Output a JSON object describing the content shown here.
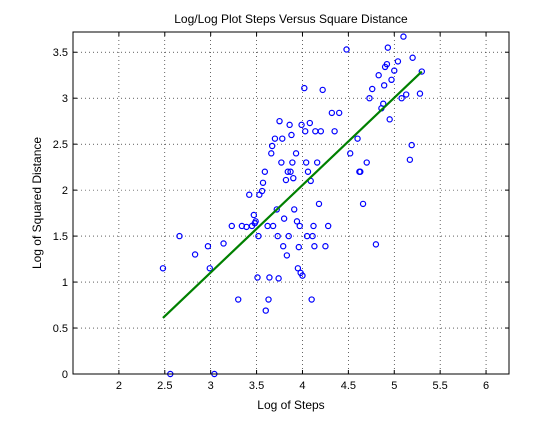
{
  "chart_data": {
    "type": "scatter",
    "title": "Log/Log Plot Steps Versus Square Distance",
    "xlabel": "Log of Steps",
    "ylabel": "Log of Squared Distance",
    "xlim": [
      1.5,
      6.25
    ],
    "ylim": [
      0,
      3.72
    ],
    "xticks": [
      2,
      2.5,
      3,
      3.5,
      4,
      4.5,
      5,
      5.5,
      6
    ],
    "xtick_labels": [
      "2",
      "2.5",
      "3",
      "3.5",
      "4",
      "4.5",
      "5",
      "5.5",
      "6"
    ],
    "yticks": [
      0,
      0.5,
      1,
      1.5,
      2,
      2.5,
      3,
      3.5
    ],
    "ytick_labels": [
      "0",
      "0.5",
      "1",
      "1.5",
      "2",
      "2.5",
      "3",
      "3.5"
    ],
    "grid": true,
    "series": [
      {
        "kind": "scatter",
        "color": "#0000ff",
        "marker": "circle",
        "x": [
          2.48,
          2.56,
          2.66,
          2.83,
          2.97,
          2.99,
          3.04,
          3.14,
          3.23,
          3.3,
          3.34,
          3.39,
          3.42,
          3.45,
          3.47,
          3.48,
          3.49,
          3.51,
          3.52,
          3.53,
          3.56,
          3.57,
          3.59,
          3.6,
          3.62,
          3.63,
          3.64,
          3.66,
          3.67,
          3.68,
          3.7,
          3.72,
          3.73,
          3.74,
          3.75,
          3.77,
          3.78,
          3.79,
          3.8,
          3.82,
          3.83,
          3.84,
          3.85,
          3.86,
          3.87,
          3.88,
          3.89,
          3.9,
          3.91,
          3.93,
          3.94,
          3.95,
          3.96,
          3.97,
          3.98,
          3.99,
          4.0,
          4.02,
          4.03,
          4.04,
          4.05,
          4.06,
          4.08,
          4.09,
          4.1,
          4.11,
          4.12,
          4.13,
          4.14,
          4.16,
          4.18,
          4.2,
          4.22,
          4.25,
          4.28,
          4.32,
          4.35,
          4.4,
          4.48,
          4.52,
          4.6,
          4.62,
          4.63,
          4.66,
          4.7,
          4.73,
          4.76,
          4.8,
          4.83,
          4.86,
          4.88,
          4.89,
          4.9,
          4.92,
          4.93,
          4.95,
          4.97,
          5.0,
          5.04,
          5.08,
          5.1,
          5.13,
          5.17,
          5.19,
          5.2,
          5.28,
          5.3
        ],
        "y": [
          1.15,
          0.0,
          1.5,
          1.3,
          1.39,
          1.15,
          0.0,
          1.42,
          1.61,
          0.81,
          1.61,
          1.6,
          1.95,
          1.61,
          1.73,
          1.64,
          1.66,
          1.05,
          1.5,
          1.95,
          1.99,
          2.08,
          2.2,
          0.69,
          1.61,
          0.81,
          1.05,
          2.4,
          2.48,
          1.61,
          2.56,
          1.79,
          1.5,
          1.04,
          2.75,
          2.3,
          2.56,
          1.39,
          1.69,
          2.11,
          1.29,
          2.2,
          1.5,
          2.71,
          2.2,
          2.6,
          2.3,
          2.13,
          1.79,
          2.4,
          1.66,
          1.15,
          1.38,
          1.61,
          1.1,
          2.71,
          1.07,
          3.11,
          2.64,
          2.3,
          1.5,
          2.2,
          2.73,
          2.1,
          0.81,
          1.5,
          1.61,
          1.39,
          2.64,
          2.3,
          1.85,
          2.64,
          3.09,
          1.39,
          1.61,
          2.84,
          2.64,
          2.84,
          3.53,
          2.4,
          2.56,
          2.2,
          2.2,
          1.85,
          2.3,
          3.0,
          3.1,
          1.41,
          3.25,
          2.89,
          2.94,
          3.14,
          3.34,
          3.37,
          3.55,
          2.77,
          3.2,
          3.3,
          3.4,
          3.0,
          3.67,
          3.04,
          2.33,
          2.49,
          3.44,
          3.05,
          3.29
        ]
      },
      {
        "kind": "line",
        "name": "",
        "color": "#008000",
        "x": [
          2.48,
          5.3
        ],
        "y": [
          0.61,
          3.29
        ]
      }
    ]
  }
}
